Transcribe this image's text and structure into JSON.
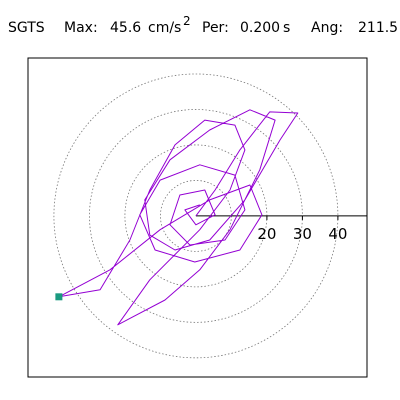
{
  "chart_data": {
    "type": "orbit",
    "station": "SGTS",
    "max_label": "Max:",
    "max_value": 45.6,
    "max_unit": "cm/s",
    "max_unit_exp": "2",
    "period_label": "Per:",
    "period": {
      "value": 0.2,
      "label": "0.200"
    },
    "period_unit": "s",
    "angle_label": "Ang:",
    "angle_value": 211.5,
    "xlim": [
      -47.3,
      48.2
    ],
    "ylim": [
      -45.4,
      44.5
    ],
    "rings": [
      10,
      20,
      30,
      40
    ],
    "xticks": [
      20,
      30,
      40
    ],
    "color": "#9400d3",
    "peak_color": "#1a9a80",
    "peak": {
      "x": -38.6,
      "y": -22.8
    },
    "x": [
      0,
      5.4,
      12.4,
      20.8,
      28.7,
      23.7,
      13.8,
      3.9,
      -5.9,
      -13.0,
      -14.4,
      -7.3,
      3.9,
      15.2,
      22.3,
      18.0,
      9.6,
      1.1,
      -8.7,
      -22.0,
      -13.0,
      1.1,
      9.6,
      13.8,
      11.0,
      2.5,
      -5.9,
      -13.0,
      -18.6,
      -27.0,
      -38.6,
      -24.2,
      -10.1,
      3.9,
      15.2,
      18.6,
      12.4,
      -0.3,
      -11.5,
      -15.8,
      -10.1,
      1.1,
      11.0,
      13.8,
      8.2,
      -1.7,
      -7.3,
      -4.5,
      2.5,
      5.4,
      0,
      -3.1,
      1.1
    ],
    "y": [
      0,
      7.3,
      18.6,
      29.3,
      29.0,
      21.4,
      4.5,
      -6.8,
      -9.6,
      -5.4,
      4.5,
      15.8,
      24.2,
      29.9,
      27.0,
      13.0,
      -3.9,
      -15.2,
      -23.7,
      -30.7,
      -18.0,
      -3.9,
      7.3,
      18.6,
      25.6,
      27.0,
      20.0,
      7.3,
      -6.8,
      -20.8,
      -22.8,
      -15.2,
      -3.9,
      4.5,
      8.7,
      0.3,
      -9.6,
      -13.0,
      -9.6,
      0.3,
      10.1,
      14.4,
      11.5,
      1.7,
      -6.8,
      -8.2,
      -2.5,
      5.9,
      7.3,
      0.3,
      -2.5,
      1.7,
      3.1
    ]
  }
}
